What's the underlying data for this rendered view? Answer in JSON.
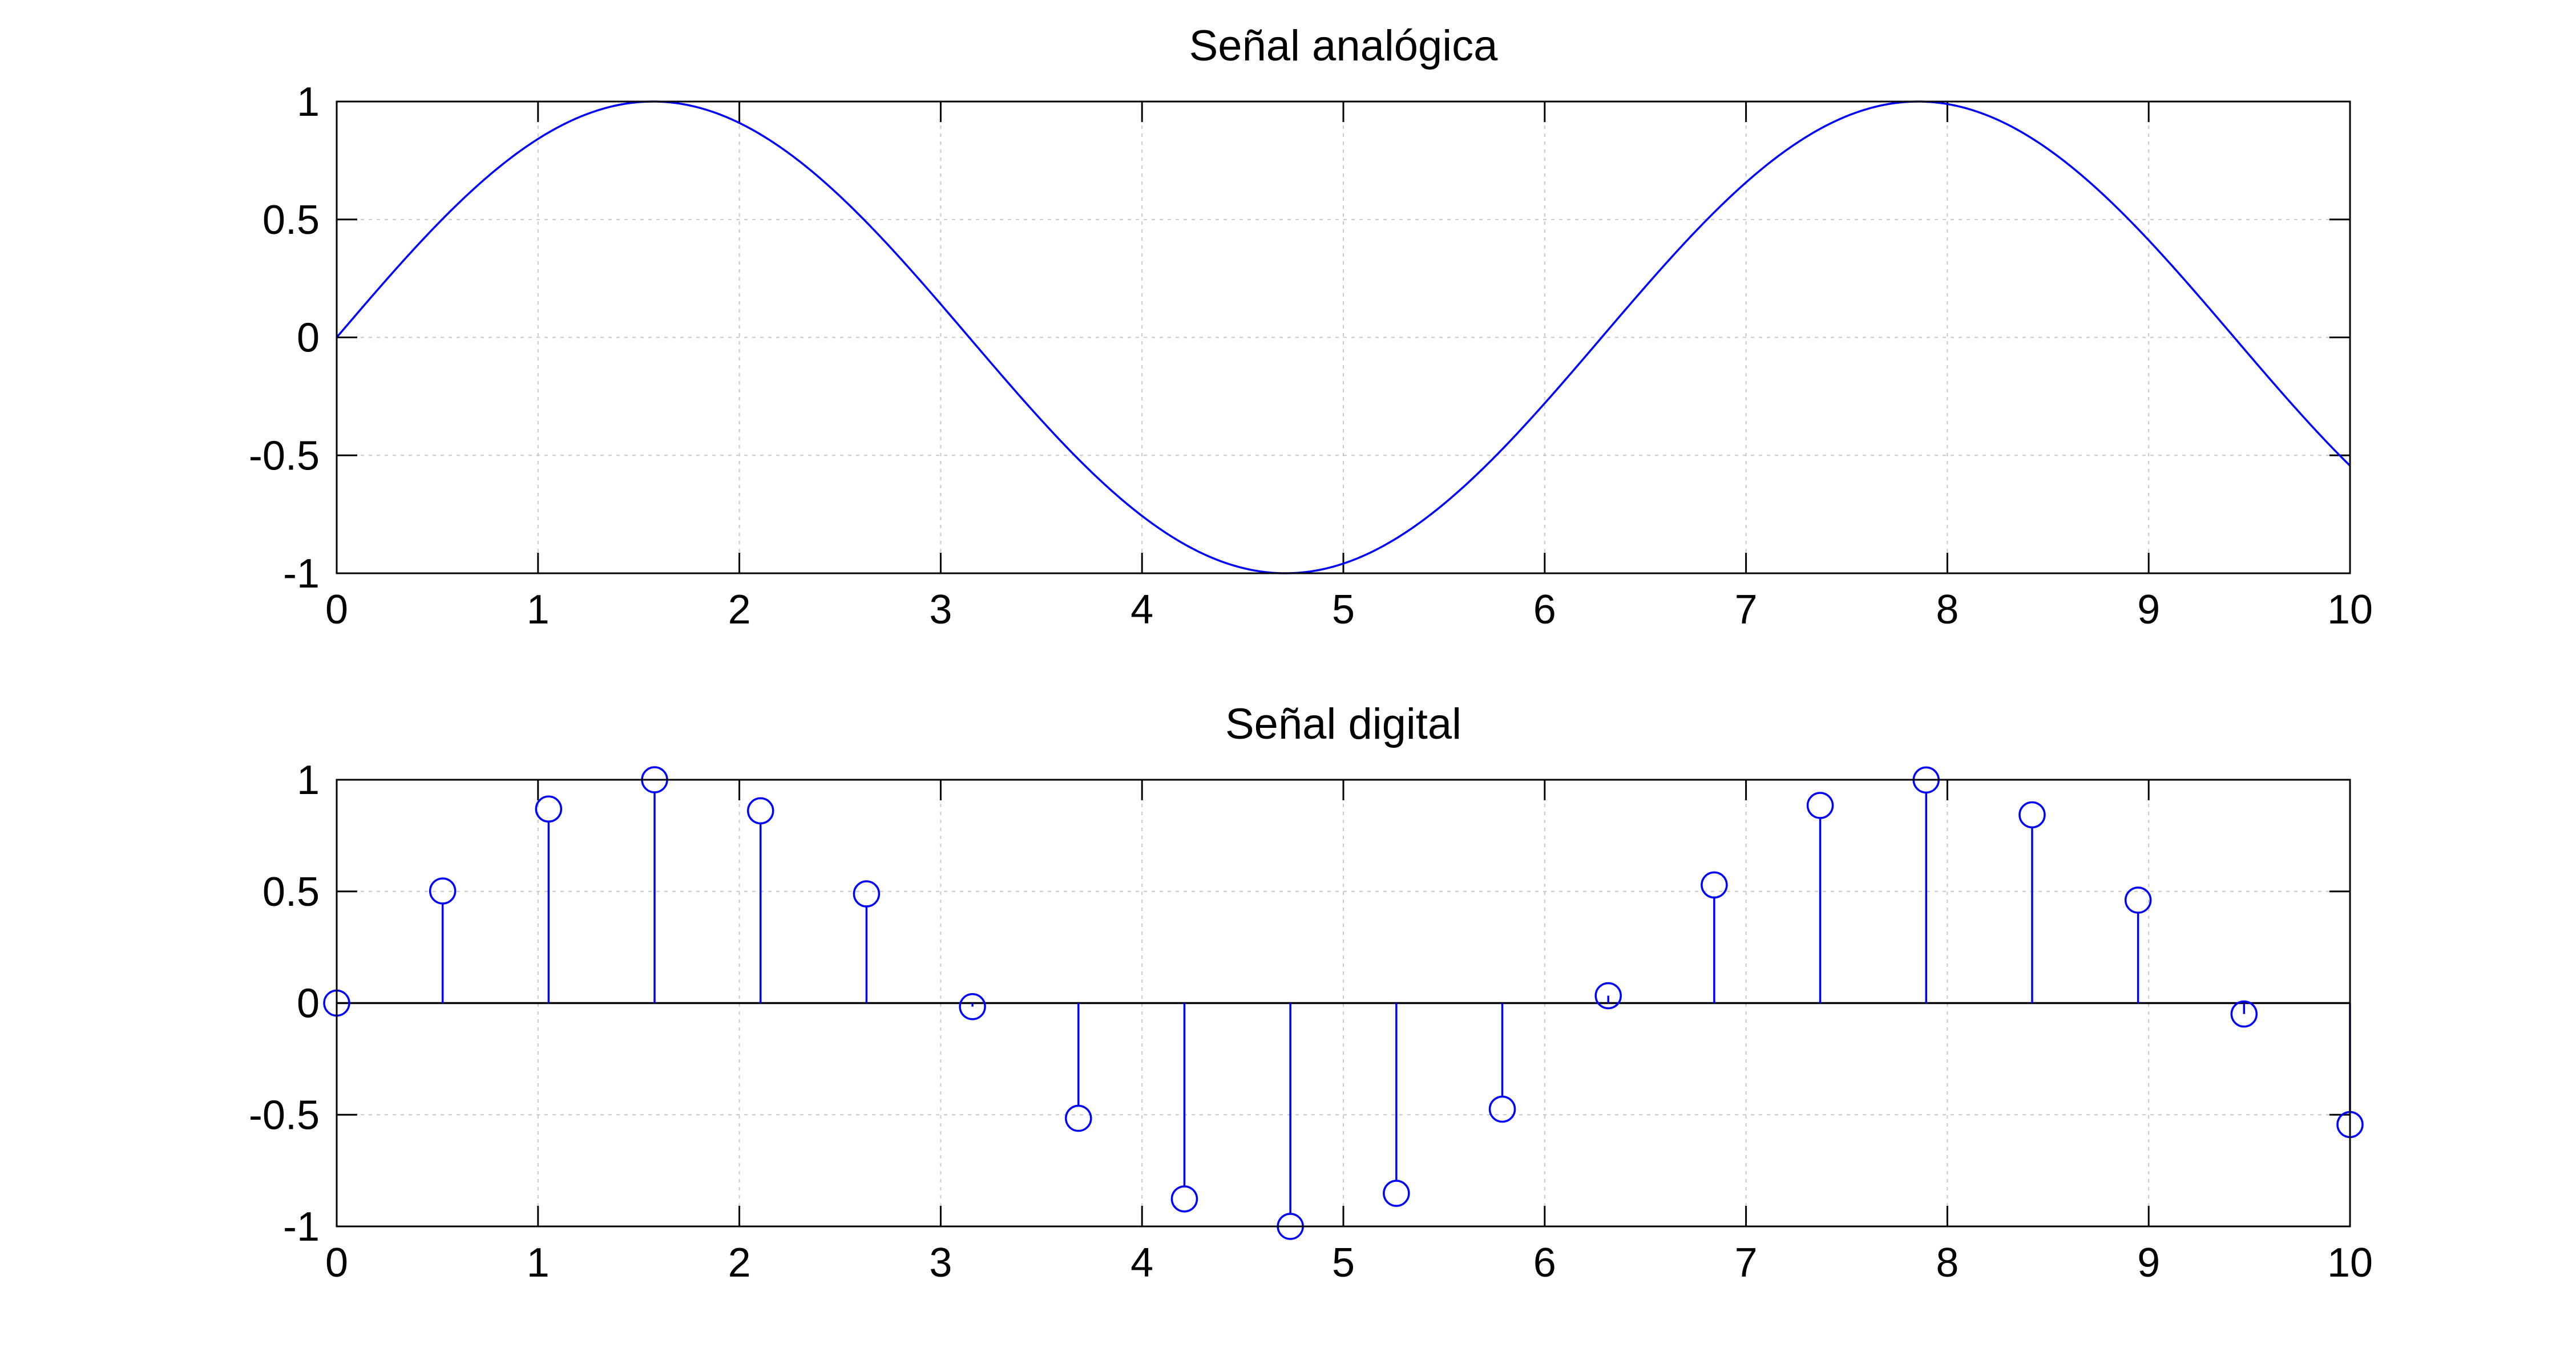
{
  "chart_data": [
    {
      "type": "line",
      "title": "Señal analógica",
      "xlabel": "",
      "ylabel": "",
      "xlim": [
        0,
        10
      ],
      "ylim": [
        -1,
        1
      ],
      "xticks": [
        0,
        1,
        2,
        3,
        4,
        5,
        6,
        7,
        8,
        9,
        10
      ],
      "yticks": [
        -1,
        -0.5,
        0,
        0.5,
        1
      ],
      "xtick_labels": [
        "0",
        "1",
        "2",
        "3",
        "4",
        "5",
        "6",
        "7",
        "8",
        "9",
        "10"
      ],
      "ytick_labels": [
        "-1",
        "-0.5",
        "0",
        "0.5",
        "1"
      ],
      "grid": true,
      "color": "#0000ff",
      "series": [
        {
          "function": "sin(x)",
          "x": [
            0,
            0.25,
            0.5,
            0.75,
            1.0,
            1.25,
            1.5,
            1.5708,
            1.75,
            2.0,
            2.25,
            2.5,
            2.75,
            3.0,
            3.25,
            3.5,
            3.75,
            4.0,
            4.25,
            4.5,
            4.7124,
            4.75,
            5.0,
            5.25,
            5.5,
            5.75,
            6.0,
            6.25,
            6.5,
            6.75,
            7.0,
            7.25,
            7.5,
            7.75,
            7.854,
            8.0,
            8.25,
            8.5,
            8.75,
            9.0,
            9.25,
            9.5,
            9.75,
            10.0
          ],
          "y": [
            0,
            0.247,
            0.479,
            0.682,
            0.841,
            0.949,
            0.997,
            1.0,
            0.984,
            0.909,
            0.778,
            0.598,
            0.382,
            0.141,
            -0.108,
            -0.351,
            -0.572,
            -0.757,
            -0.895,
            -0.978,
            -1.0,
            -0.999,
            -0.959,
            -0.859,
            -0.706,
            -0.508,
            -0.279,
            -0.033,
            0.215,
            0.45,
            0.657,
            0.823,
            0.938,
            0.994,
            1.0,
            0.989,
            0.923,
            0.798,
            0.624,
            0.412,
            0.174,
            -0.075,
            -0.319,
            -0.544
          ]
        }
      ]
    },
    {
      "type": "stem",
      "title": "Señal digital",
      "xlabel": "",
      "ylabel": "",
      "xlim": [
        0,
        10
      ],
      "ylim": [
        -1,
        1
      ],
      "xticks": [
        0,
        1,
        2,
        3,
        4,
        5,
        6,
        7,
        8,
        9,
        10
      ],
      "yticks": [
        -1,
        -0.5,
        0,
        0.5,
        1
      ],
      "xtick_labels": [
        "0",
        "1",
        "2",
        "3",
        "4",
        "5",
        "6",
        "7",
        "8",
        "9",
        "10"
      ],
      "ytick_labels": [
        "-1",
        "-0.5",
        "0",
        "0.5",
        "1"
      ],
      "grid": true,
      "color": "#0000ff",
      "marker": "circle",
      "series": [
        {
          "x": [
            0,
            0.5263,
            1.0526,
            1.5789,
            2.1053,
            2.6316,
            3.1579,
            3.6842,
            4.2105,
            4.7368,
            5.2632,
            5.7895,
            6.3158,
            6.8421,
            7.3684,
            7.8947,
            8.4211,
            8.9474,
            9.4737,
            10.0
          ],
          "y": [
            0,
            0.502,
            0.869,
            1.0,
            0.861,
            0.489,
            -0.016,
            -0.516,
            -0.877,
            -1.0,
            -0.852,
            -0.475,
            0.033,
            0.529,
            0.885,
            0.999,
            0.843,
            0.461,
            -0.049,
            -0.544
          ]
        }
      ]
    }
  ]
}
